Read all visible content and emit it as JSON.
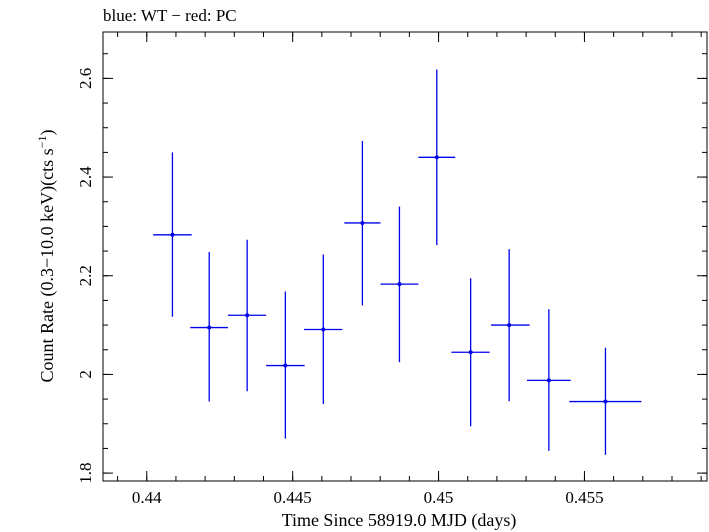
{
  "chart_data": {
    "type": "scatter",
    "title": "blue: WT − red: PC",
    "xlabel": "Time Since 58919.0 MJD (days)",
    "ylabel_main": "Count Rate (0.3−10.0 keV)(cts s",
    "ylabel_sup": "−1",
    "ylabel_end": ")",
    "xlim": [
      0.4385,
      0.4592
    ],
    "ylim": [
      1.784,
      2.694
    ],
    "xticks": [
      0.44,
      0.445,
      0.45,
      0.455
    ],
    "xtick_labels": [
      "0.44",
      "0.445",
      "0.45",
      "0.455"
    ],
    "yticks": [
      1.8,
      2.0,
      2.2,
      2.4,
      2.6
    ],
    "ytick_labels": [
      "1.8",
      "2",
      "2.2",
      "2.4",
      "2.6"
    ],
    "grid": false,
    "series": [
      {
        "color": "#0000ee",
        "points": [
          {
            "x": 0.44088,
            "y": 2.283,
            "xerr": [
              0.00066,
              0.00066
            ],
            "yerr": [
              0.166,
              0.167
            ]
          },
          {
            "x": 0.44214,
            "y": 2.095,
            "xerr": [
              0.00065,
              0.00064
            ],
            "yerr": [
              0.15,
              0.153
            ]
          },
          {
            "x": 0.44344,
            "y": 2.12,
            "xerr": [
              0.00066,
              0.00065
            ],
            "yerr": [
              0.154,
              0.153
            ]
          },
          {
            "x": 0.44475,
            "y": 2.018,
            "xerr": [
              0.00066,
              0.00066
            ],
            "yerr": [
              0.148,
              0.15
            ]
          },
          {
            "x": 0.44605,
            "y": 2.091,
            "xerr": [
              0.00066,
              0.00065
            ],
            "yerr": [
              0.151,
              0.152
            ]
          },
          {
            "x": 0.44739,
            "y": 2.307,
            "xerr": [
              0.00062,
              0.00062
            ],
            "yerr": [
              0.167,
              0.166
            ]
          },
          {
            "x": 0.44866,
            "y": 2.183,
            "xerr": [
              0.00065,
              0.00065
            ],
            "yerr": [
              0.158,
              0.157
            ]
          },
          {
            "x": 0.44994,
            "y": 2.44,
            "xerr": [
              0.00063,
              0.00063
            ],
            "yerr": [
              0.178,
              0.178
            ]
          },
          {
            "x": 0.4511,
            "y": 2.045,
            "xerr": [
              0.00066,
              0.00065
            ],
            "yerr": [
              0.15,
              0.15
            ]
          },
          {
            "x": 0.45242,
            "y": 2.1,
            "xerr": [
              0.00062,
              0.0007
            ],
            "yerr": [
              0.154,
              0.154
            ]
          },
          {
            "x": 0.45378,
            "y": 1.988,
            "xerr": [
              0.00075,
              0.00075
            ],
            "yerr": [
              0.143,
              0.144
            ]
          },
          {
            "x": 0.45572,
            "y": 1.945,
            "xerr": [
              0.00124,
              0.00123
            ],
            "yerr": [
              0.108,
              0.109
            ]
          }
        ]
      }
    ]
  }
}
